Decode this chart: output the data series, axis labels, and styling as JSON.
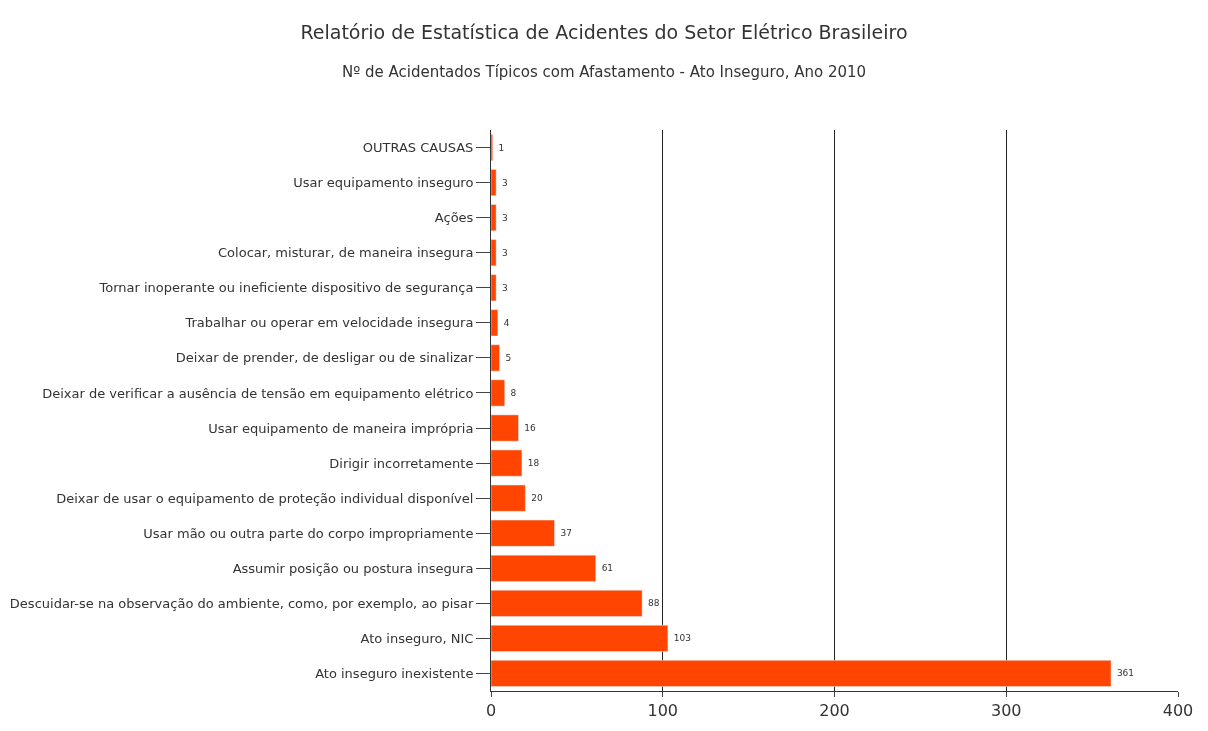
{
  "chart_data": {
    "type": "bar",
    "orientation": "horizontal",
    "title": "Relatório de Estatística de Acidentes do Setor Elétrico Brasileiro",
    "subtitle": "Nº de Acidentados Típicos com Afastamento - Ato Inseguro, Ano 2010",
    "categories": [
      "OUTRAS CAUSAS",
      "Usar equipamento inseguro",
      "Ações",
      "Colocar, misturar, de maneira insegura",
      "Tornar inoperante ou ineficiente dispositivo de segurança",
      "Trabalhar ou operar em velocidade insegura",
      "Deixar de prender, de desligar ou de sinalizar",
      "Deixar de verificar a ausência de tensão em equipamento elétrico",
      "Usar equipamento de maneira imprópria",
      "Dirigir incorretamente",
      "Deixar de usar o equipamento de proteção individual disponível",
      "Usar mão ou outra parte do corpo impropriamente",
      "Assumir posição ou postura insegura",
      "Descuidar-se na observação do ambiente, como, por exemplo, ao pisar",
      "Ato inseguro, NIC",
      "Ato inseguro inexistente"
    ],
    "values": [
      1,
      3,
      3,
      3,
      3,
      4,
      5,
      8,
      16,
      18,
      20,
      37,
      61,
      88,
      103,
      361
    ],
    "color": "#ff4500",
    "xlim": [
      0,
      400
    ],
    "xticks": [
      0,
      100,
      200,
      300,
      400
    ],
    "grid": "x",
    "data_labels": true
  }
}
